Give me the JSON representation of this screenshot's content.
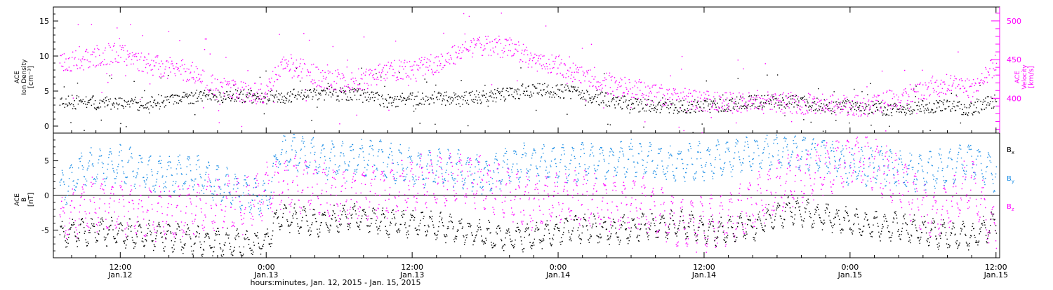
{
  "colors": {
    "black": "#000000",
    "magenta": "#ff00ff",
    "blue": "#1f8fe6",
    "axis": "#000000"
  },
  "chart_data": [
    {
      "type": "scatter",
      "panel": "top",
      "x_range_hours": [
        6.5,
        84.3
      ],
      "left_axis": {
        "label_lines": [
          "ACE",
          "Ion Density",
          "[cm⁻³]"
        ],
        "ylim": [
          -1,
          17
        ],
        "ticks": [
          0,
          5,
          10,
          15
        ]
      },
      "right_axis": {
        "label_lines": [
          "ACE",
          "Velocity",
          "[km/s]"
        ],
        "ylim": [
          355,
          518
        ],
        "ticks": [
          400,
          450,
          500
        ],
        "color": "magenta"
      },
      "series": [
        {
          "name": "Ion Density",
          "color": "black",
          "axis": "left",
          "x": [
            7,
            10,
            13,
            16,
            19,
            22,
            25,
            28,
            31,
            34,
            37,
            40,
            43,
            46,
            49,
            52,
            55,
            58,
            61,
            64,
            67,
            70,
            73,
            76,
            79,
            82,
            84
          ],
          "y": [
            3.5,
            3.4,
            3.2,
            3.5,
            4.5,
            4.3,
            4.2,
            4.8,
            4.7,
            3.6,
            4.0,
            4.0,
            4.5,
            5.2,
            5.0,
            3.8,
            3.0,
            2.8,
            3.0,
            3.5,
            3.6,
            3.0,
            2.8,
            2.5,
            3.0,
            2.5,
            3.8
          ]
        },
        {
          "name": "Velocity",
          "color": "magenta",
          "axis": "right",
          "x": [
            7,
            8,
            10,
            12,
            14,
            16,
            18,
            20,
            22,
            24,
            25,
            26,
            28,
            31,
            34,
            37,
            40,
            42,
            44,
            46,
            49,
            52,
            55,
            58,
            61,
            64,
            67,
            70,
            73,
            76,
            78,
            80,
            82,
            84
          ],
          "y": [
            450,
            448,
            455,
            460,
            445,
            440,
            435,
            412,
            410,
            405,
            440,
            445,
            430,
            420,
            435,
            440,
            460,
            470,
            465,
            450,
            440,
            420,
            410,
            400,
            395,
            395,
            395,
            392,
            390,
            400,
            410,
            420,
            410,
            445
          ]
        }
      ]
    },
    {
      "type": "scatter",
      "panel": "bottom",
      "x_range_hours": [
        6.5,
        84.3
      ],
      "axis": {
        "label_lines": [
          "ACE",
          "B",
          "[nT]"
        ],
        "ylim": [
          -9,
          9
        ],
        "ticks": [
          -5,
          0,
          5
        ]
      },
      "legend_placement": "right",
      "x_tick_labels": [
        {
          "hour": 12,
          "time": "12:00",
          "date": "Jan.12"
        },
        {
          "hour": 24,
          "time": "0:00",
          "date": "Jan.13"
        },
        {
          "hour": 36,
          "time": "12:00",
          "date": "Jan.13"
        },
        {
          "hour": 48,
          "time": "0:00",
          "date": "Jan.14"
        },
        {
          "hour": 60,
          "time": "12:00",
          "date": "Jan.14"
        },
        {
          "hour": 72,
          "time": "0:00",
          "date": "Jan.15"
        },
        {
          "hour": 84,
          "time": "12:00",
          "date": "Jan.15"
        }
      ],
      "xlabel": "hours:minutes, Jan. 12, 2015 - Jan. 15, 2015",
      "series": [
        {
          "name": "Bx",
          "color": "black",
          "x": [
            7,
            10,
            13,
            16,
            19,
            22,
            24,
            25,
            28,
            31,
            34,
            37,
            40,
            43,
            46,
            49,
            52,
            55,
            58,
            61,
            64,
            67,
            70,
            73,
            76,
            79,
            82,
            84
          ],
          "y": [
            -5.5,
            -5,
            -5.5,
            -6,
            -6.5,
            -7,
            -6.5,
            -3,
            -4,
            -3,
            -4,
            -4,
            -5,
            -6,
            -6,
            -4.5,
            -5,
            -4.5,
            -4,
            -5,
            -4.5,
            -2,
            -3,
            -4,
            -4.5,
            -5.5,
            -6,
            -4
          ]
        },
        {
          "name": "By",
          "color": "blue",
          "x": [
            7,
            9,
            12,
            15,
            18,
            21,
            24,
            25,
            27,
            30,
            33,
            36,
            39,
            42,
            45,
            48,
            51,
            54,
            57,
            60,
            62,
            64,
            67,
            70,
            72,
            74,
            77,
            80,
            82,
            84
          ],
          "y": [
            0.5,
            4,
            4.5,
            3,
            3.5,
            1,
            -0.5,
            6.5,
            6,
            5,
            5.5,
            4,
            4,
            3,
            5,
            4.5,
            5,
            5.5,
            4.5,
            5,
            5.5,
            6.5,
            6.5,
            6,
            4,
            4.5,
            3.5,
            4,
            5.5,
            3
          ]
        },
        {
          "name": "Bz",
          "color": "magenta",
          "x": [
            7,
            10,
            13,
            16,
            19,
            22,
            25,
            28,
            31,
            34,
            37,
            40,
            43,
            46,
            49,
            52,
            55,
            58,
            61,
            64,
            67,
            70,
            73,
            76,
            79,
            82,
            84
          ],
          "y": [
            -4,
            -1,
            -2,
            -3,
            -1,
            -1.5,
            2,
            1,
            0,
            1,
            2,
            3,
            1,
            -1,
            0,
            -1,
            -1,
            -4,
            -4,
            -1,
            2,
            4,
            6,
            2,
            -3,
            2,
            -6
          ]
        }
      ]
    }
  ],
  "legend": [
    {
      "base": "B",
      "sub": "x",
      "color": "black"
    },
    {
      "base": "B",
      "sub": "y",
      "color": "blue"
    },
    {
      "base": "B",
      "sub": "z",
      "color": "magenta"
    }
  ]
}
